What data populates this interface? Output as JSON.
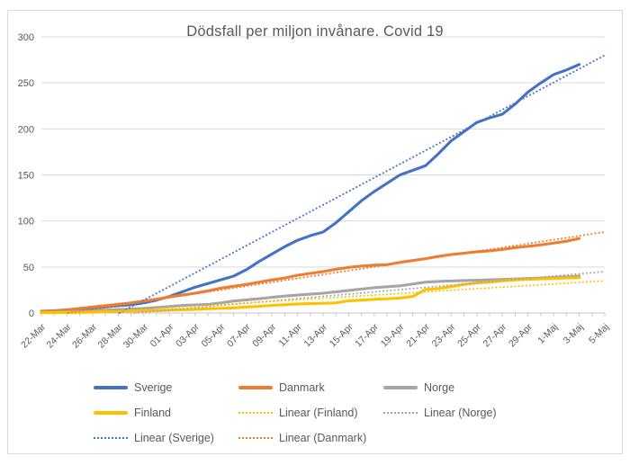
{
  "chart_data": {
    "type": "line",
    "title": "Dödsfall per miljon invånare. Covid 19",
    "xlabel": "",
    "ylabel": "",
    "ylim": [
      0,
      300
    ],
    "y_ticks": [
      0,
      50,
      100,
      150,
      200,
      250,
      300
    ],
    "grid": true,
    "legend_position": "bottom",
    "x_total_days": 44,
    "x_tick_labels": [
      "22-Mar",
      "24-Mar",
      "26-Mar",
      "28-Mar",
      "30-Mar",
      "01-Apr",
      "03-Apr",
      "05-Apr",
      "07-Apr",
      "09-Apr",
      "11-Apr",
      "13-Apr",
      "15-Apr",
      "17-Apr",
      "19-Apr",
      "21-Apr",
      "23-Apr",
      "25-Apr",
      "27-Apr",
      "29-Apr",
      "1-Maj",
      "3-Maj",
      "5-Maj"
    ],
    "x_tick_label_interval_days": 2,
    "series": [
      {
        "name": "Sverige",
        "color": "#4472C4",
        "values": [
          1.5,
          2,
          3,
          4,
          5,
          6.5,
          8,
          9,
          11,
          14,
          18,
          23,
          28,
          32,
          36,
          40,
          47,
          56,
          64,
          72,
          79,
          84,
          88,
          98,
          110,
          122,
          132,
          141,
          150,
          155,
          160,
          173,
          187,
          197,
          207,
          212,
          216,
          227,
          240,
          250,
          259,
          264,
          270
        ]
      },
      {
        "name": "Danmark",
        "color": "#ED7D31",
        "values": [
          2,
          2.5,
          3.5,
          5,
          6.5,
          8,
          9.5,
          11,
          13,
          15,
          17.5,
          19.5,
          21.5,
          24,
          27,
          29,
          31,
          33.5,
          36,
          38,
          41,
          43,
          45,
          47.5,
          49.5,
          51,
          52,
          52.5,
          55,
          57,
          59,
          61.5,
          63.5,
          65,
          66.5,
          67.5,
          69,
          71,
          72.5,
          74,
          76,
          78,
          81
        ]
      },
      {
        "name": "Norge",
        "color": "#A5A5A5",
        "values": [
          0.7,
          1,
          1.4,
          1.9,
          2.4,
          3,
          3.7,
          4.3,
          5,
          5.9,
          7.1,
          8.2,
          8.8,
          9.3,
          11,
          13,
          14.2,
          15.5,
          17,
          18.4,
          19.5,
          20.5,
          21.5,
          23,
          24.5,
          26,
          27.5,
          28.5,
          29.5,
          31.5,
          33.5,
          34.3,
          34.8,
          35.2,
          35.6,
          36,
          36.5,
          37,
          37.5,
          38,
          38.5,
          39.2,
          40
        ]
      },
      {
        "name": "Finland",
        "color": "#FFC000",
        "values": [
          0.3,
          0.4,
          0.5,
          0.7,
          0.9,
          1.3,
          1.6,
          2,
          2.2,
          2.5,
          3.1,
          3.5,
          4,
          4.6,
          5,
          5.5,
          6.5,
          7.2,
          8.3,
          9,
          9.8,
          10.2,
          10.6,
          11,
          13.3,
          14,
          14.9,
          15.4,
          16.3,
          18,
          25.5,
          26.5,
          28.5,
          31,
          32.6,
          33.5,
          35,
          36,
          36.6,
          37,
          37.5,
          38,
          38.5
        ]
      }
    ],
    "trendlines": [
      {
        "name": "Linear (Sverige)",
        "color": "#4472C4",
        "start_day": 6.1,
        "start_value": 0,
        "end_day": 44,
        "end_value": 280
      },
      {
        "name": "Linear (Danmark)",
        "color": "#ED7D31",
        "start_day": 2.1,
        "start_value": 0,
        "end_day": 44,
        "end_value": 88
      },
      {
        "name": "Linear (Norge)",
        "color": "#A5A5A5",
        "start_day": 7.3,
        "start_value": 0,
        "end_day": 44,
        "end_value": 45
      },
      {
        "name": "Linear (Finland)",
        "color": "#FFC000",
        "start_day": 3.4,
        "start_value": 0,
        "end_day": 44,
        "end_value": 35
      }
    ]
  },
  "legend": {
    "items": [
      {
        "label": "Sverige",
        "color": "#4472C4",
        "style": "solid"
      },
      {
        "label": "Danmark",
        "color": "#ED7D31",
        "style": "solid"
      },
      {
        "label": "Norge",
        "color": "#A5A5A5",
        "style": "solid"
      },
      {
        "label": "Finland",
        "color": "#FFC000",
        "style": "solid"
      },
      {
        "label": "Linear (Finland)",
        "color": "#FFC000",
        "style": "dotted"
      },
      {
        "label": "Linear (Norge)",
        "color": "#A5A5A5",
        "style": "dotted"
      },
      {
        "label": "Linear (Sverige)",
        "color": "#4472C4",
        "style": "dotted"
      },
      {
        "label": "Linear (Danmark)",
        "color": "#ED7D31",
        "style": "dotted"
      }
    ]
  },
  "colors": {
    "grid": "#d9d9d9",
    "axis": "#c6c6c6",
    "text": "#595959",
    "frame_border": "#d9d9d9"
  }
}
